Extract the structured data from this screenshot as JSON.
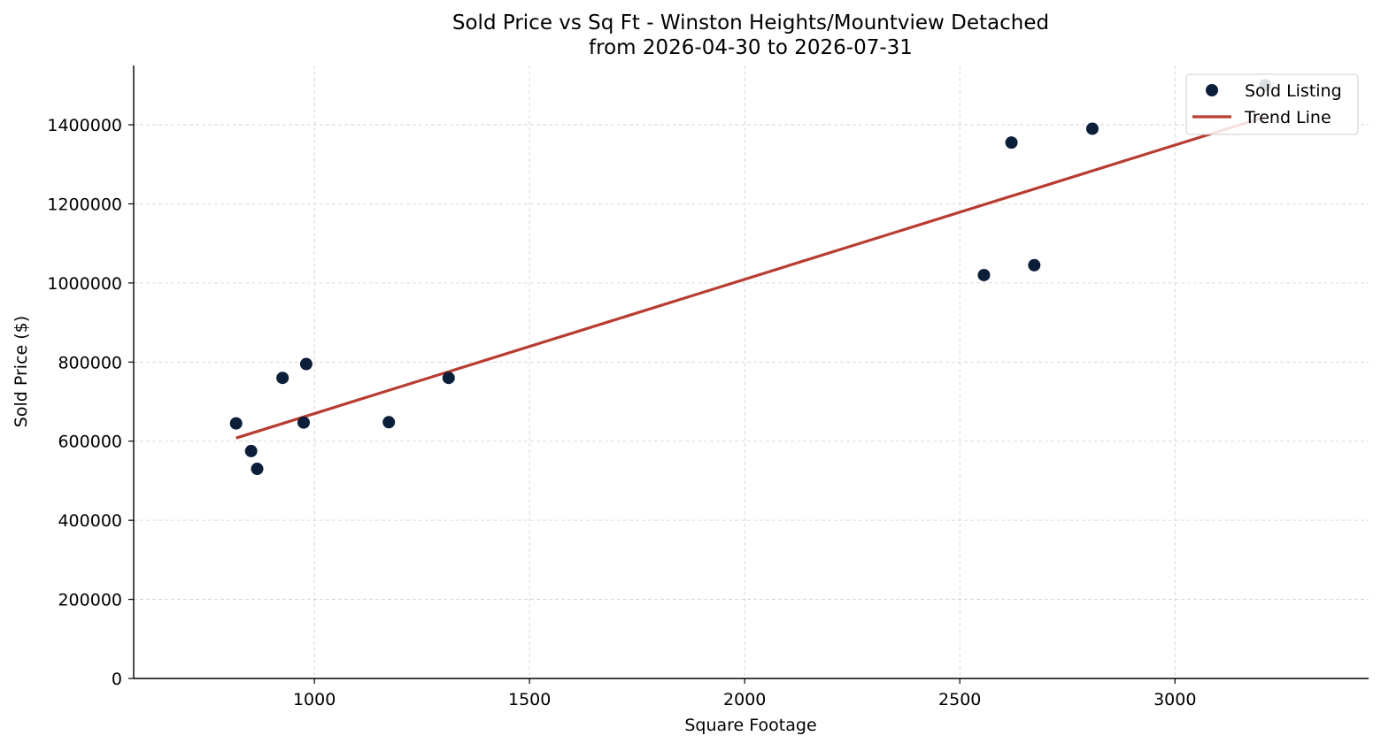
{
  "chart_data": {
    "type": "scatter",
    "title_line1": "Sold Price vs Sq Ft - Winston Heights/Mountview Detached",
    "title_line2": "from 2026-04-30 to 2026-07-31",
    "xlabel": "Square Footage",
    "ylabel": "Sold Price ($)",
    "xlim": [
      580,
      3450
    ],
    "ylim": [
      0,
      1550000
    ],
    "x_ticks": [
      1000,
      1500,
      2000,
      2500,
      3000
    ],
    "x_tick_labels": [
      "1000",
      "1500",
      "2000",
      "2500",
      "3000"
    ],
    "y_ticks": [
      0,
      200000,
      400000,
      600000,
      800000,
      1000000,
      1200000,
      1400000
    ],
    "y_tick_labels": [
      "0",
      "200000",
      "400000",
      "600000",
      "800000",
      "1000000",
      "1200000",
      "1400000"
    ],
    "grid": true,
    "legend_position": "top-right",
    "series": [
      {
        "name": "Sold Listing",
        "kind": "scatter",
        "color": "#0b1f3a",
        "points": [
          {
            "x": 818,
            "y": 645000
          },
          {
            "x": 853,
            "y": 575000
          },
          {
            "x": 867,
            "y": 530000
          },
          {
            "x": 926,
            "y": 760000
          },
          {
            "x": 975,
            "y": 647000
          },
          {
            "x": 981,
            "y": 795000
          },
          {
            "x": 1173,
            "y": 648000
          },
          {
            "x": 1312,
            "y": 760000
          },
          {
            "x": 2556,
            "y": 1020000
          },
          {
            "x": 2620,
            "y": 1355000
          },
          {
            "x": 2673,
            "y": 1045000
          },
          {
            "x": 2808,
            "y": 1390000
          },
          {
            "x": 3210,
            "y": 1500000
          }
        ]
      },
      {
        "name": "Trend Line",
        "kind": "line",
        "color": "#b83c30",
        "points": [
          {
            "x": 818,
            "y": 608000
          },
          {
            "x": 3210,
            "y": 1420000
          }
        ]
      }
    ]
  }
}
